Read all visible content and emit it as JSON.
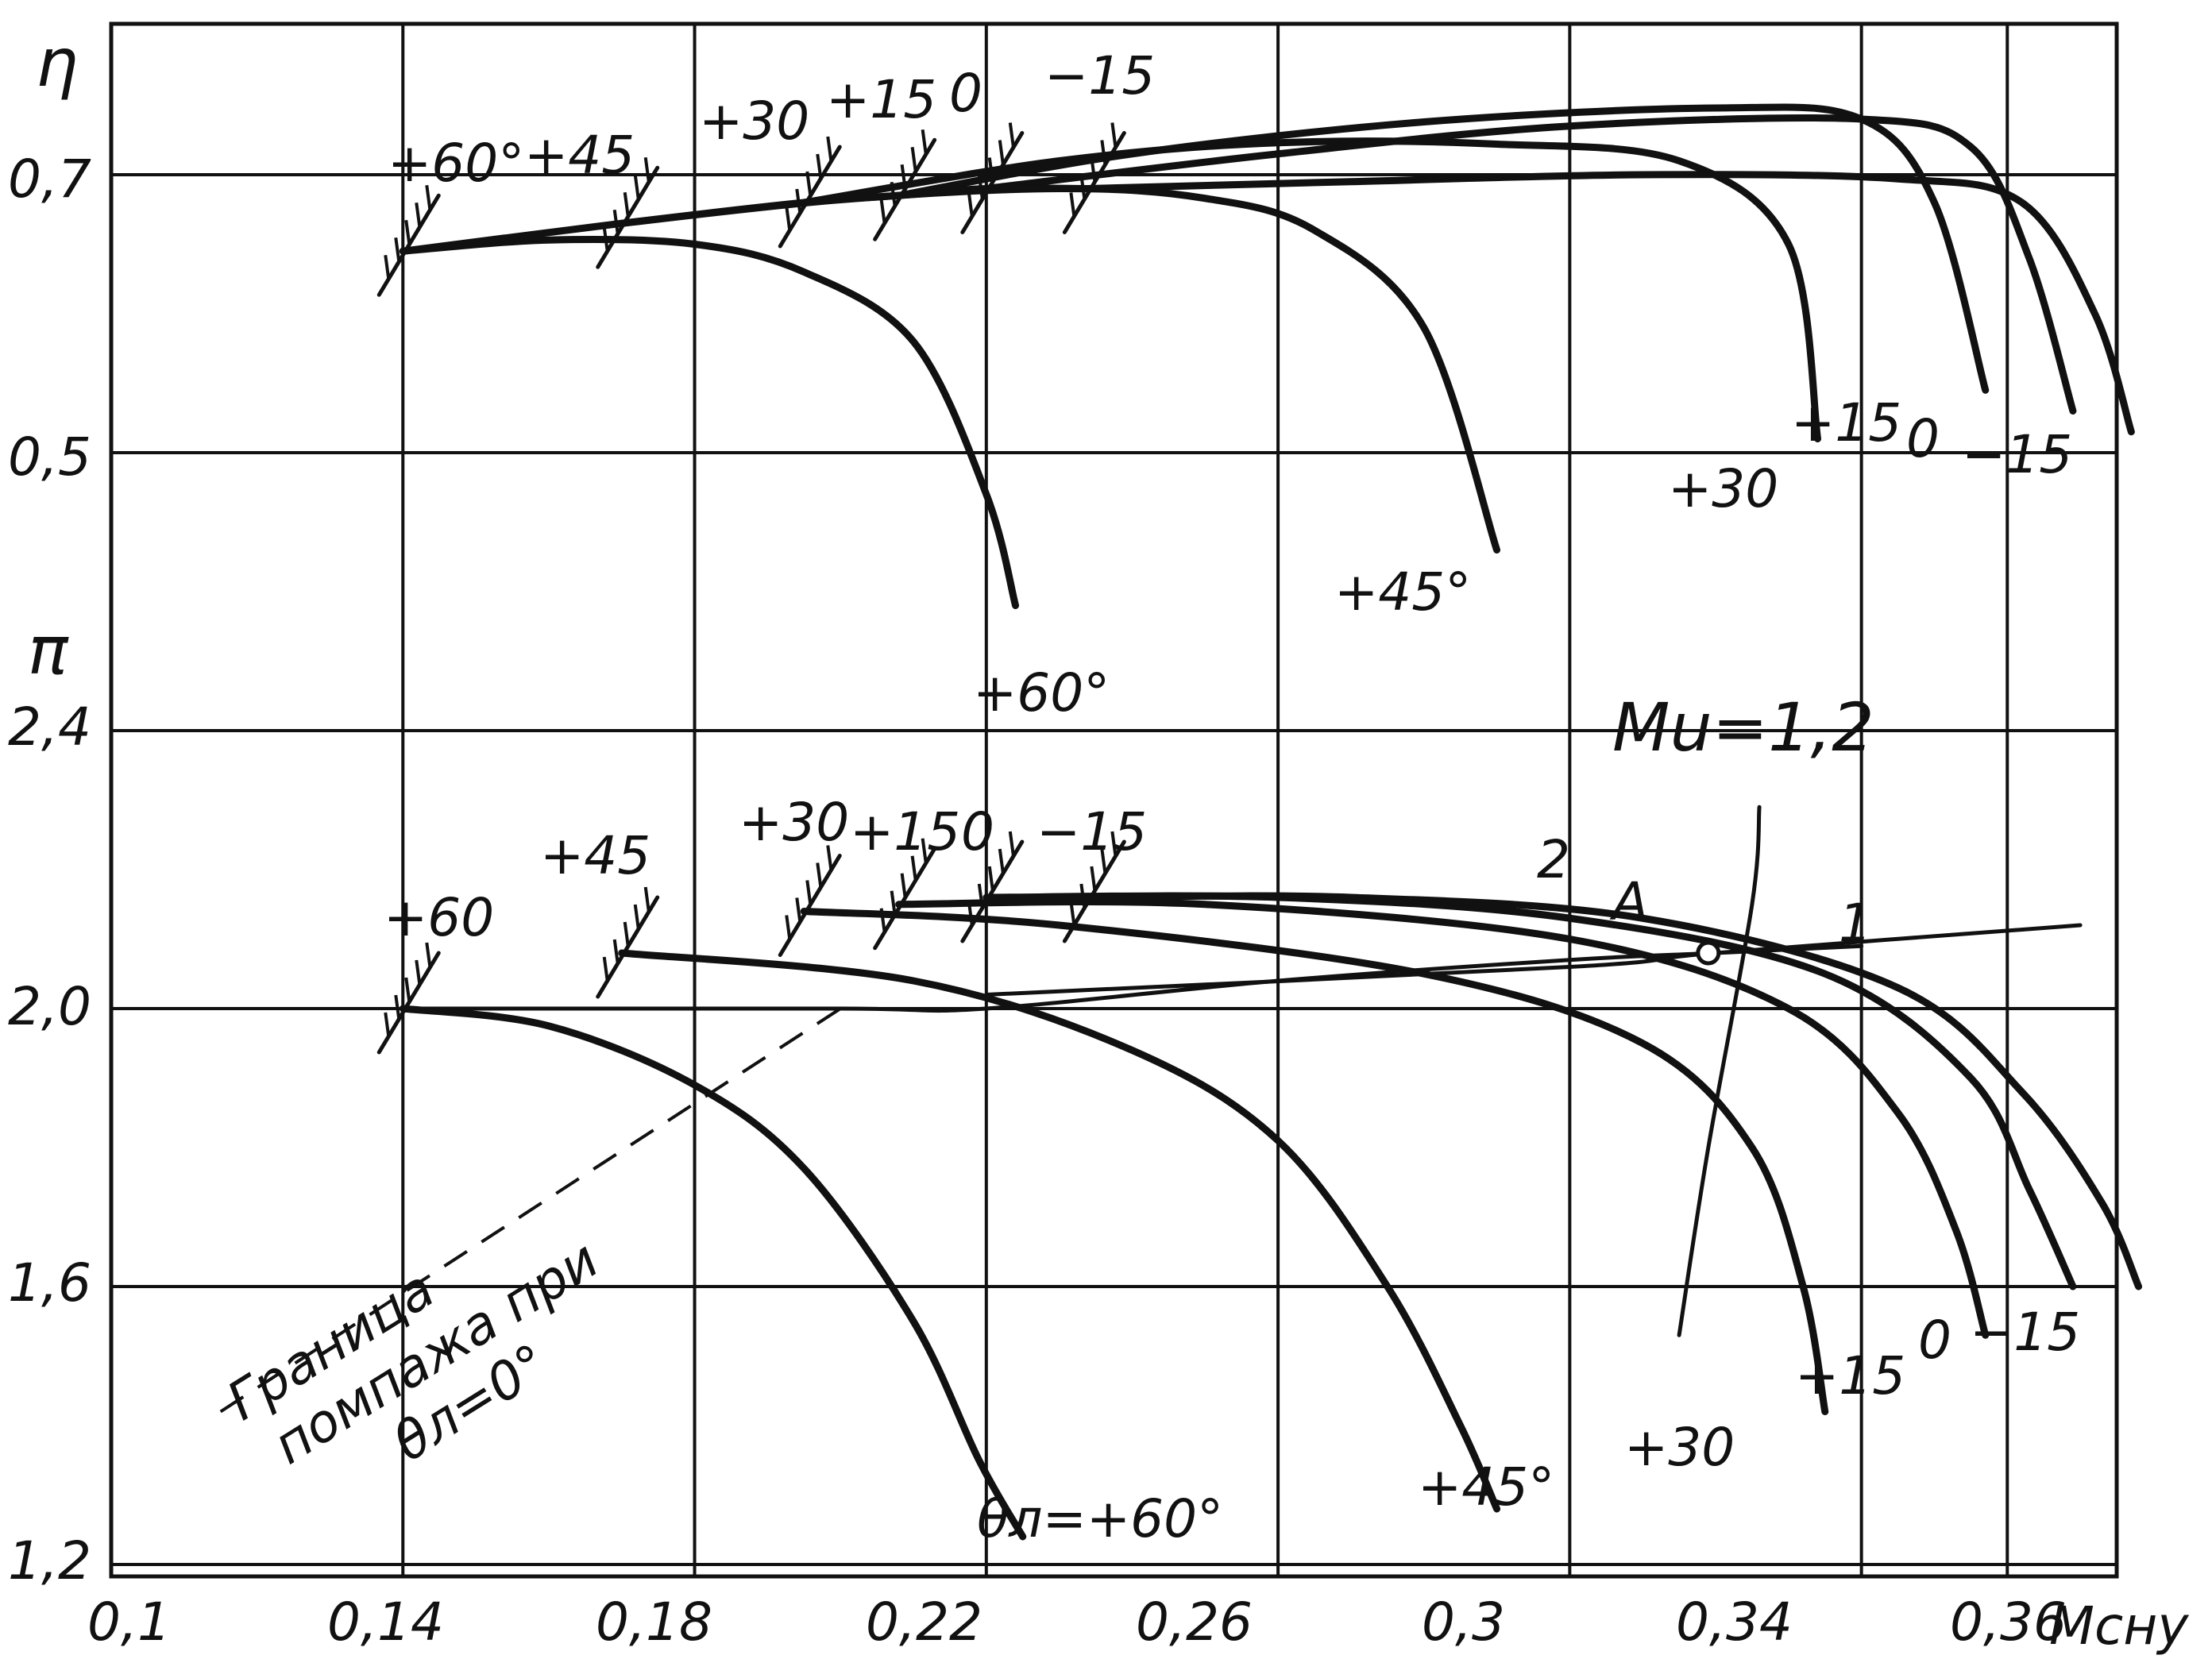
{
  "chart_data": [
    {
      "type": "line",
      "ylabel": "η",
      "xlabel": "Mсну",
      "xlim": [
        0.1,
        0.375
      ],
      "ylim": [
        0.43,
        0.79
      ],
      "x_ticks": [
        "0,1",
        "0,14",
        "0,18",
        "0,22",
        "0,26",
        "0,3",
        "0,34",
        "0,36"
      ],
      "y_ticks": [
        {
          "value": 0.7,
          "label": "0,7"
        },
        {
          "value": 0.5,
          "label": "0,5"
        }
      ],
      "grid": true,
      "series": [
        {
          "name": "+60°",
          "points": [
            [
              0.14,
              0.645
            ],
            [
              0.16,
              0.653
            ],
            [
              0.18,
              0.65
            ],
            [
              0.195,
              0.63
            ],
            [
              0.21,
              0.58
            ],
            [
              0.22,
              0.47
            ],
            [
              0.224,
              0.39
            ]
          ]
        },
        {
          "name": "+45°",
          "points": [
            [
              0.17,
              0.665
            ],
            [
              0.2,
              0.682
            ],
            [
              0.23,
              0.69
            ],
            [
              0.25,
              0.683
            ],
            [
              0.265,
              0.66
            ],
            [
              0.28,
              0.59
            ],
            [
              0.29,
              0.43
            ]
          ]
        },
        {
          "name": "+30",
          "points": [
            [
              0.195,
              0.68
            ],
            [
              0.23,
              0.71
            ],
            [
              0.26,
              0.723
            ],
            [
              0.29,
              0.722
            ],
            [
              0.315,
              0.71
            ],
            [
              0.33,
              0.65
            ],
            [
              0.334,
              0.51
            ]
          ]
        },
        {
          "name": "+15",
          "points": [
            [
              0.208,
              0.685
            ],
            [
              0.24,
              0.715
            ],
            [
              0.28,
              0.738
            ],
            [
              0.32,
              0.748
            ],
            [
              0.34,
              0.74
            ],
            [
              0.35,
              0.68
            ],
            [
              0.357,
              0.545
            ]
          ]
        },
        {
          "name": "0",
          "points": [
            [
              0.22,
              0.69
            ],
            [
              0.26,
              0.715
            ],
            [
              0.3,
              0.735
            ],
            [
              0.34,
              0.74
            ],
            [
              0.355,
              0.72
            ],
            [
              0.363,
              0.64
            ],
            [
              0.369,
              0.53
            ]
          ]
        },
        {
          "name": "−15",
          "points": [
            [
              0.234,
              0.69
            ],
            [
              0.27,
              0.695
            ],
            [
              0.31,
              0.7
            ],
            [
              0.345,
              0.697
            ],
            [
              0.362,
              0.68
            ],
            [
              0.372,
              0.6
            ],
            [
              0.377,
              0.515
            ]
          ]
        }
      ],
      "surge_marks": [
        [
          0.14,
          0.645
        ],
        [
          0.17,
          0.665
        ],
        [
          0.195,
          0.68
        ],
        [
          0.208,
          0.685
        ],
        [
          0.22,
          0.69
        ],
        [
          0.234,
          0.69
        ]
      ],
      "surge_labels": [
        "+60°",
        "+45",
        "+30",
        "+15",
        "0",
        "−15"
      ],
      "curve_labels": [
        "+60°",
        "+45°",
        "+30",
        "+15",
        "0",
        "−15"
      ]
    },
    {
      "type": "line",
      "ylabel": "π",
      "xlabel": "Mсну",
      "xlim": [
        0.1,
        0.375
      ],
      "ylim": [
        1.2,
        2.43
      ],
      "x_ticks": [
        "0,1",
        "0,14",
        "0,18",
        "0,22",
        "0,26",
        "0,3",
        "0,34",
        "0,36"
      ],
      "y_ticks": [
        {
          "value": 2.4,
          "label": "2,4"
        },
        {
          "value": 2.0,
          "label": "2,0"
        },
        {
          "value": 1.6,
          "label": "1,6"
        },
        {
          "value": 1.2,
          "label": "1,2"
        }
      ],
      "grid": true,
      "series": [
        {
          "name": "θл=+60°",
          "points": [
            [
              0.14,
              2.0
            ],
            [
              0.16,
              1.975
            ],
            [
              0.18,
              1.89
            ],
            [
              0.195,
              1.77
            ],
            [
              0.21,
              1.55
            ],
            [
              0.219,
              1.35
            ],
            [
              0.225,
              1.24
            ]
          ]
        },
        {
          "name": "+45°",
          "points": [
            [
              0.17,
              2.08
            ],
            [
              0.21,
              2.04
            ],
            [
              0.24,
              1.94
            ],
            [
              0.26,
              1.81
            ],
            [
              0.275,
              1.6
            ],
            [
              0.285,
              1.4
            ],
            [
              0.29,
              1.28
            ]
          ]
        },
        {
          "name": "+30",
          "points": [
            [
              0.195,
              2.14
            ],
            [
              0.23,
              2.12
            ],
            [
              0.28,
              2.05
            ],
            [
              0.31,
              1.95
            ],
            [
              0.325,
              1.8
            ],
            [
              0.332,
              1.6
            ],
            [
              0.335,
              1.42
            ]
          ]
        },
        {
          "name": "+15",
          "points": [
            [
              0.208,
              2.15
            ],
            [
              0.25,
              2.15
            ],
            [
              0.3,
              2.1
            ],
            [
              0.33,
              2.0
            ],
            [
              0.345,
              1.85
            ],
            [
              0.353,
              1.68
            ],
            [
              0.357,
              1.53
            ]
          ]
        },
        {
          "name": "0",
          "points": [
            [
              0.22,
              2.16
            ],
            [
              0.26,
              2.16
            ],
            [
              0.3,
              2.13
            ],
            [
              0.335,
              2.05
            ],
            [
              0.355,
              1.9
            ],
            [
              0.363,
              1.74
            ],
            [
              0.369,
              1.6
            ]
          ]
        },
        {
          "name": "−15",
          "points": [
            [
              0.234,
              2.16
            ],
            [
              0.27,
              2.16
            ],
            [
              0.31,
              2.13
            ],
            [
              0.345,
              2.03
            ],
            [
              0.362,
              1.88
            ],
            [
              0.373,
              1.72
            ],
            [
              0.378,
              1.6
            ]
          ]
        }
      ],
      "surge_line": [
        [
          0.14,
          2.0
        ],
        [
          0.2,
          2.0
        ],
        [
          0.22,
          2.0
        ],
        [
          0.26,
          2.04
        ],
        [
          0.3,
          2.07
        ],
        [
          0.32,
          2.08
        ],
        [
          0.34,
          2.09
        ]
      ],
      "surge_line_dashed": [
        [
          0.115,
          1.42
        ],
        [
          0.2,
          2.0
        ]
      ],
      "operating_line_1": [
        [
          0.22,
          2.02
        ],
        [
          0.3,
          2.06
        ],
        [
          0.32,
          2.08
        ],
        [
          0.37,
          2.12
        ]
      ],
      "operating_line_2": [
        [
          0.326,
          2.29
        ],
        [
          0.325,
          2.15
        ],
        [
          0.319,
          1.8
        ],
        [
          0.315,
          1.53
        ]
      ],
      "point_A": [
        0.319,
        2.08
      ],
      "surge_marks": [
        [
          0.14,
          2.0
        ],
        [
          0.17,
          2.08
        ],
        [
          0.195,
          2.14
        ],
        [
          0.208,
          2.15
        ],
        [
          0.22,
          2.16
        ],
        [
          0.234,
          2.16
        ]
      ],
      "surge_labels": [
        "+60",
        "+45",
        "+30",
        "+15",
        "0",
        "−15"
      ],
      "curve_labels": [
        "θл=+60°",
        "+45°",
        "+30",
        "+15",
        "0",
        "−15"
      ],
      "annotations": {
        "mu": "Мu=1,2",
        "point": "А",
        "line1": "1",
        "line2": "2",
        "boundary": [
          "Граница",
          "помпажа при",
          "θл=0°"
        ]
      }
    }
  ]
}
